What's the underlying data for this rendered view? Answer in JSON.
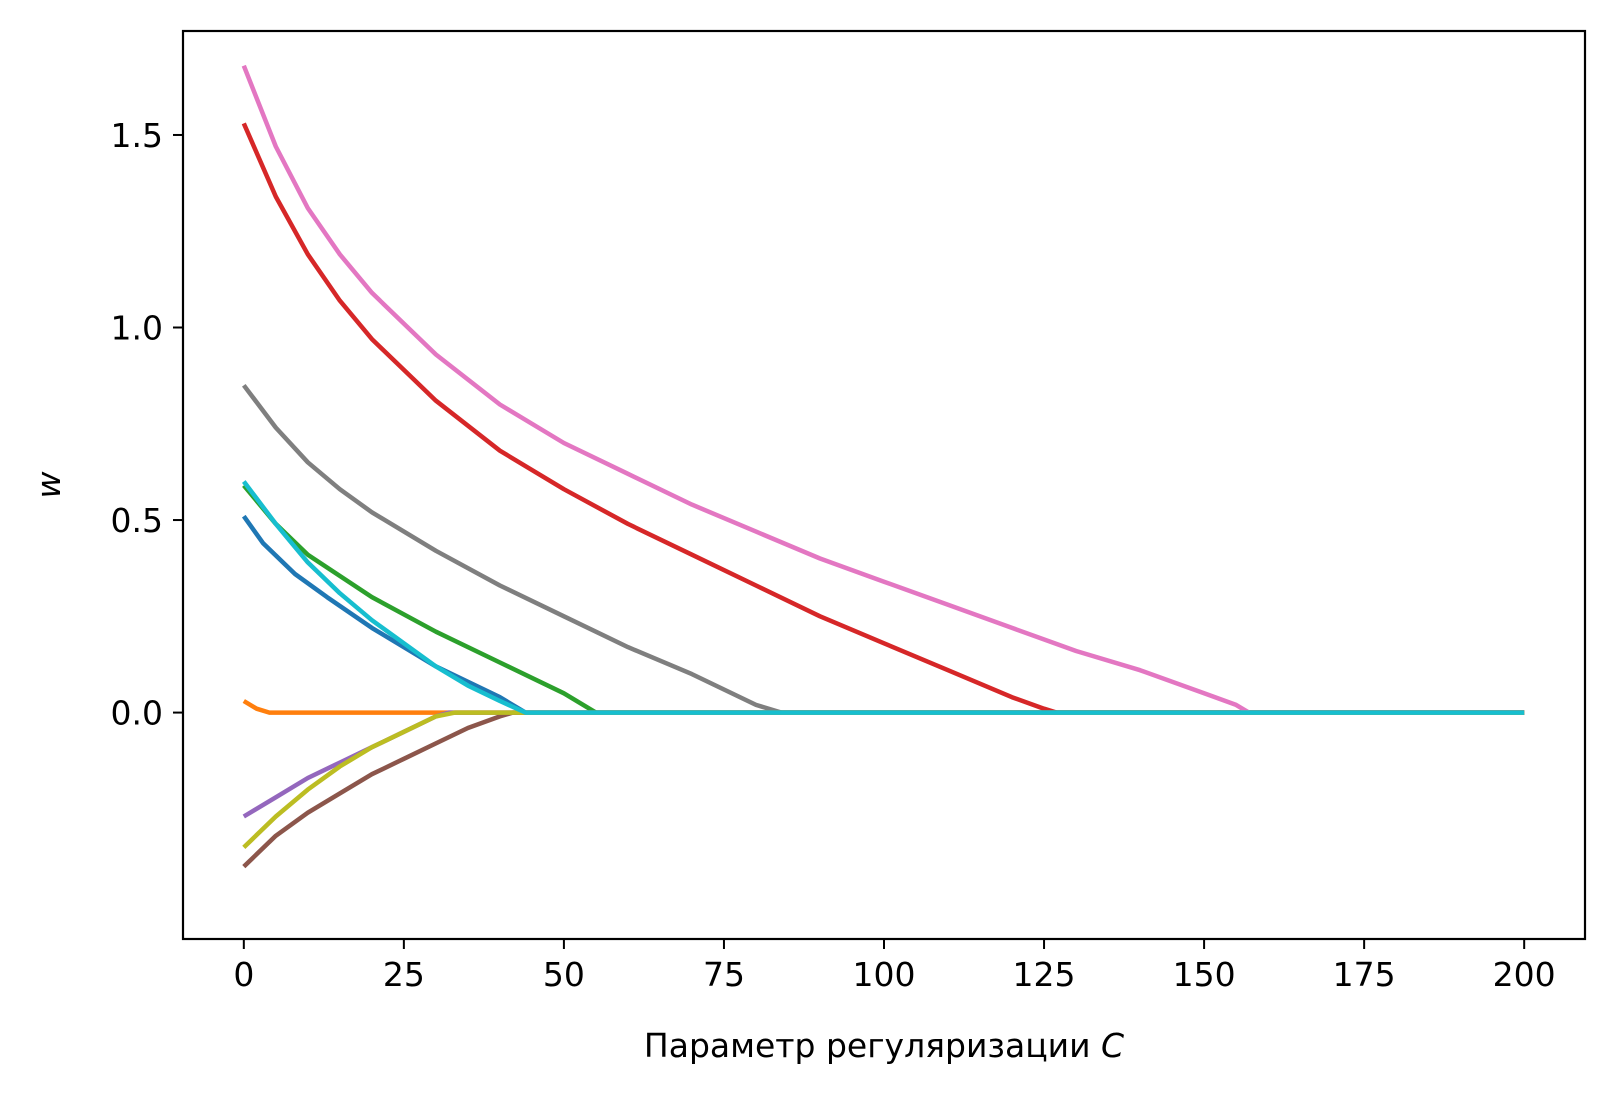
{
  "chart_data": {
    "type": "line",
    "xlabel": "Параметр регуляризации ",
    "xlabel_var": "C",
    "ylabel": "w",
    "xlim": [
      -9.5,
      209.5
    ],
    "ylim": [
      -0.588,
      1.77
    ],
    "xticks": [
      0,
      25,
      50,
      75,
      100,
      125,
      150,
      175,
      200
    ],
    "xtick_labels": [
      "0",
      "25",
      "50",
      "75",
      "100",
      "125",
      "150",
      "175",
      "200"
    ],
    "yticks": [
      0.0,
      0.5,
      1.0,
      1.5
    ],
    "ytick_labels": [
      "0.0",
      "0.5",
      "1.0",
      "1.5"
    ],
    "grid": false,
    "series": [
      {
        "color": "#1f77b4",
        "x": [
          0,
          3,
          8,
          13,
          20,
          30,
          40,
          44,
          200
        ],
        "y": [
          0.51,
          0.44,
          0.36,
          0.3,
          0.22,
          0.12,
          0.04,
          0.0,
          0.0
        ]
      },
      {
        "color": "#ff7f0e",
        "x": [
          0,
          2,
          4,
          200
        ],
        "y": [
          0.03,
          0.01,
          0.0,
          0.0
        ]
      },
      {
        "color": "#2ca02c",
        "x": [
          0,
          5,
          10,
          20,
          30,
          40,
          50,
          55,
          200
        ],
        "y": [
          0.59,
          0.49,
          0.41,
          0.3,
          0.21,
          0.13,
          0.05,
          0.0,
          0.0
        ]
      },
      {
        "color": "#d62728",
        "x": [
          0,
          5,
          10,
          15,
          20,
          30,
          40,
          50,
          60,
          70,
          80,
          90,
          100,
          110,
          120,
          125,
          127,
          200
        ],
        "y": [
          1.53,
          1.34,
          1.19,
          1.07,
          0.97,
          0.81,
          0.68,
          0.58,
          0.49,
          0.41,
          0.33,
          0.25,
          0.18,
          0.11,
          0.04,
          0.01,
          0.0,
          0.0
        ]
      },
      {
        "color": "#9467bd",
        "x": [
          0,
          5,
          10,
          15,
          20,
          25,
          30,
          32,
          200
        ],
        "y": [
          -0.27,
          -0.22,
          -0.17,
          -0.13,
          -0.09,
          -0.05,
          -0.01,
          0.0,
          0.0
        ]
      },
      {
        "color": "#8c564b",
        "x": [
          0,
          5,
          10,
          15,
          20,
          25,
          30,
          35,
          40,
          42,
          200
        ],
        "y": [
          -0.4,
          -0.32,
          -0.26,
          -0.21,
          -0.16,
          -0.12,
          -0.08,
          -0.04,
          -0.01,
          0.0,
          0.0
        ]
      },
      {
        "color": "#e377c2",
        "x": [
          0,
          5,
          10,
          15,
          20,
          30,
          40,
          50,
          60,
          70,
          80,
          90,
          100,
          110,
          120,
          130,
          140,
          150,
          155,
          157,
          200
        ],
        "y": [
          1.68,
          1.47,
          1.31,
          1.19,
          1.09,
          0.93,
          0.8,
          0.7,
          0.62,
          0.54,
          0.47,
          0.4,
          0.34,
          0.28,
          0.22,
          0.16,
          0.11,
          0.05,
          0.02,
          0.0,
          0.0
        ]
      },
      {
        "color": "#7f7f7f",
        "x": [
          0,
          5,
          10,
          15,
          20,
          30,
          40,
          50,
          60,
          70,
          80,
          84,
          200
        ],
        "y": [
          0.85,
          0.74,
          0.65,
          0.58,
          0.52,
          0.42,
          0.33,
          0.25,
          0.17,
          0.1,
          0.02,
          0.0,
          0.0
        ]
      },
      {
        "color": "#bcbd22",
        "x": [
          0,
          5,
          10,
          15,
          20,
          25,
          30,
          33,
          200
        ],
        "y": [
          -0.35,
          -0.27,
          -0.2,
          -0.14,
          -0.09,
          -0.05,
          -0.01,
          0.0,
          0.0
        ]
      },
      {
        "color": "#17becf",
        "x": [
          0,
          5,
          10,
          15,
          20,
          25,
          30,
          35,
          40,
          44,
          200
        ],
        "y": [
          0.6,
          0.49,
          0.39,
          0.31,
          0.24,
          0.18,
          0.12,
          0.07,
          0.03,
          0.0,
          0.0
        ]
      }
    ]
  }
}
